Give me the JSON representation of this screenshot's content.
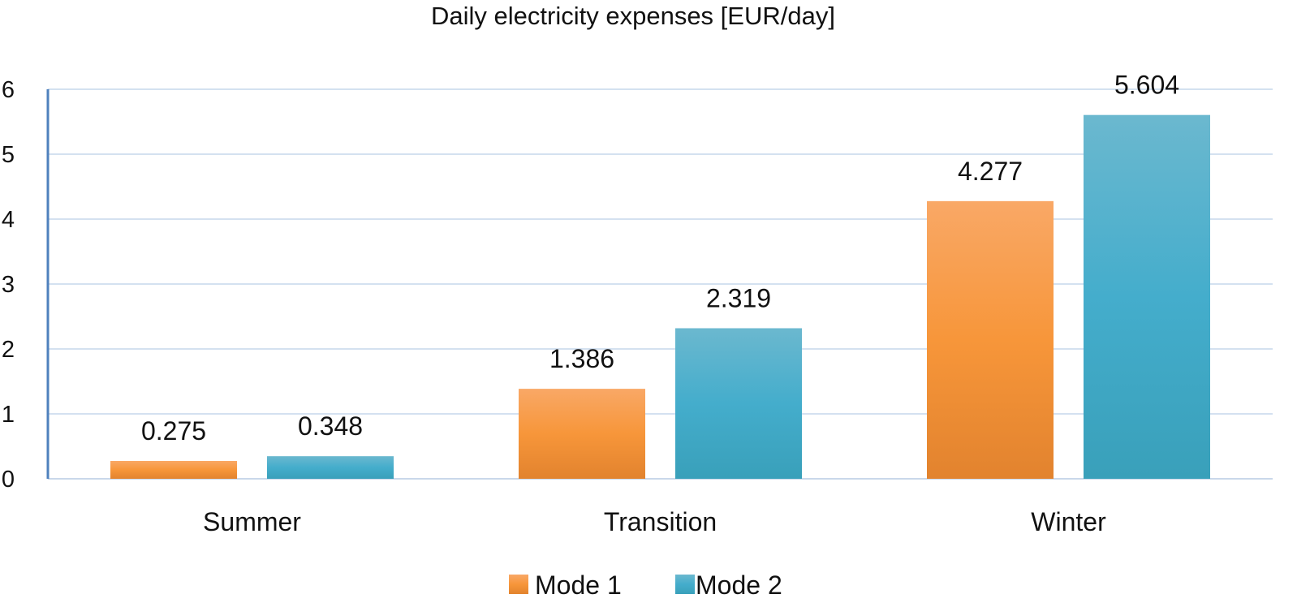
{
  "chart_data": {
    "type": "bar",
    "title": "Daily electricity expenses [EUR/day]",
    "xlabel": "",
    "ylabel": "",
    "categories": [
      "Summer",
      "Transition",
      "Winter"
    ],
    "series": [
      {
        "name": "Mode 1",
        "values": [
          0.275,
          1.386,
          4.277
        ],
        "color": "#F79646"
      },
      {
        "name": "Mode 2",
        "values": [
          0.348,
          2.319,
          5.604
        ],
        "color": "#4BACC6"
      }
    ],
    "data_labels": [
      [
        "0.275",
        "1.386",
        "4.277"
      ],
      [
        "0.348",
        "2.319",
        "5.604"
      ]
    ],
    "ylim": [
      0,
      6
    ],
    "yticks": [
      "0",
      "1",
      "2",
      "3",
      "4",
      "5",
      "6"
    ],
    "grid": true,
    "legend_position": "bottom-center",
    "axis_color": "#4F81BD",
    "grid_color": "#D4E1F0"
  }
}
